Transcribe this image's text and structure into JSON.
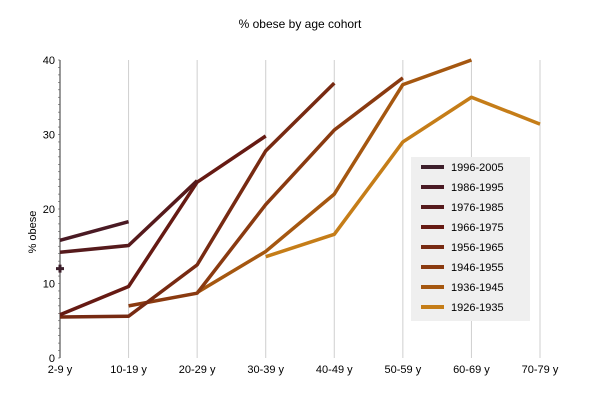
{
  "chart_data": {
    "type": "line",
    "title": "% obese by age cohort",
    "xlabel": "",
    "ylabel": "% obese",
    "categories": [
      "2-9 y",
      "10-19 y",
      "20-29 y",
      "30-39 y",
      "40-49 y",
      "50-59 y",
      "60-69 y",
      "70-79 y"
    ],
    "ylim": [
      0,
      40
    ],
    "yticks": [
      0,
      10,
      20,
      30,
      40
    ],
    "grid": "vertical",
    "legend_position": "right",
    "series": [
      {
        "name": "1996-2005",
        "color": "#3d1f2b",
        "values": [
          12,
          null,
          null,
          null,
          null,
          null,
          null,
          null
        ]
      },
      {
        "name": "1986-1995",
        "color": "#4a1a24",
        "values": [
          15.8,
          18.3,
          null,
          null,
          null,
          null,
          null,
          null
        ]
      },
      {
        "name": "1976-1985",
        "color": "#561a1c",
        "values": [
          14.2,
          15.1,
          23.8,
          null,
          null,
          null,
          null,
          null
        ]
      },
      {
        "name": "1966-1975",
        "color": "#661a13",
        "values": [
          5.8,
          9.6,
          23.6,
          29.8,
          null,
          null,
          null,
          null
        ]
      },
      {
        "name": "1956-1965",
        "color": "#772a12",
        "values": [
          5.5,
          5.6,
          12.5,
          27.8,
          36.9,
          null,
          null,
          null
        ]
      },
      {
        "name": "1946-1955",
        "color": "#8a3a10",
        "values": [
          null,
          7.0,
          8.7,
          20.6,
          30.6,
          37.6,
          null,
          null
        ]
      },
      {
        "name": "1936-1945",
        "color": "#a55710",
        "values": [
          null,
          null,
          8.8,
          14.3,
          22.0,
          36.7,
          40.0,
          null
        ]
      },
      {
        "name": "1926-1935",
        "color": "#c57d18",
        "values": [
          null,
          null,
          null,
          13.6,
          16.6,
          29.0,
          35.0,
          31.4
        ]
      }
    ]
  }
}
